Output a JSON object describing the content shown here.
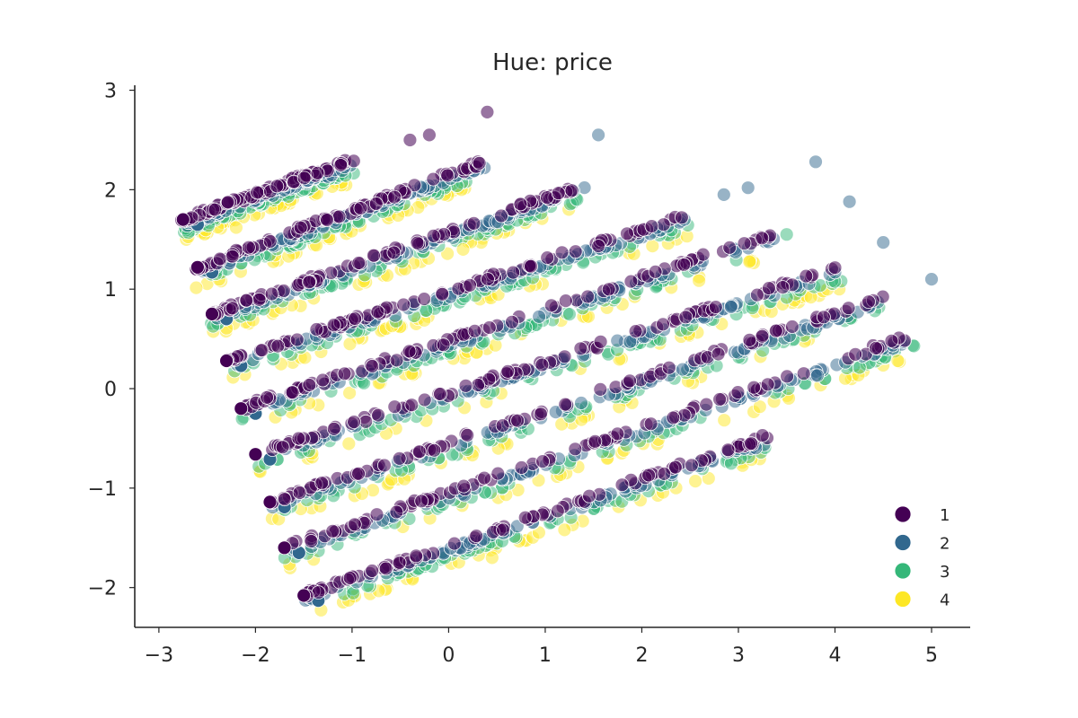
{
  "chart_data": {
    "type": "scatter",
    "title": "Hue: price",
    "xlabel": "",
    "ylabel": "",
    "xlim": [
      -3.25,
      5.4
    ],
    "ylim": [
      -2.4,
      3.05
    ],
    "xticks": [
      -3,
      -2,
      -1,
      0,
      1,
      2,
      3,
      4,
      5
    ],
    "yticks": [
      -2,
      -1,
      0,
      1,
      2,
      3
    ],
    "xtick_labels": [
      "−3",
      "−2",
      "−1",
      "0",
      "1",
      "2",
      "3",
      "4",
      "5"
    ],
    "ytick_labels": [
      "−2",
      "−1",
      "0",
      "1",
      "2",
      "3"
    ],
    "grid": false,
    "legend": {
      "placement": "bottom-right",
      "entries": [
        {
          "label": "1",
          "color": "#440154"
        },
        {
          "label": "2",
          "color": "#31688e"
        },
        {
          "label": "3",
          "color": "#35b779"
        },
        {
          "label": "4",
          "color": "#fde725"
        }
      ]
    },
    "bands": [
      {
        "start": [
          -2.75,
          1.7
        ],
        "end": [
          -1.0,
          2.3
        ]
      },
      {
        "start": [
          -2.6,
          1.22
        ],
        "end": [
          0.35,
          2.28
        ]
      },
      {
        "start": [
          -2.45,
          0.75
        ],
        "end": [
          1.4,
          2.05
        ]
      },
      {
        "start": [
          -2.3,
          0.28
        ],
        "end": [
          2.5,
          1.75
        ]
      },
      {
        "start": [
          -2.15,
          -0.2
        ],
        "end": [
          3.35,
          1.55
        ]
      },
      {
        "start": [
          -2.0,
          -0.66
        ],
        "end": [
          4.15,
          1.25
        ]
      },
      {
        "start": [
          -1.85,
          -1.14
        ],
        "end": [
          4.5,
          0.92
        ]
      },
      {
        "start": [
          -1.7,
          -1.6
        ],
        "end": [
          4.85,
          0.55
        ]
      },
      {
        "start": [
          -1.5,
          -2.08
        ],
        "end": [
          3.3,
          -0.48
        ]
      }
    ],
    "series": [
      {
        "name": "1",
        "color": "#440154",
        "opacity": 0.55,
        "offset_y": 0.0,
        "points_per_band": 90
      },
      {
        "name": "2",
        "color": "#31688e",
        "opacity": 0.5,
        "offset_y": -0.05,
        "points_per_band": 90
      },
      {
        "name": "3",
        "color": "#35b779",
        "opacity": 0.5,
        "offset_y": -0.12,
        "points_per_band": 60
      },
      {
        "name": "4",
        "color": "#fde725",
        "opacity": 0.5,
        "offset_y": -0.2,
        "points_per_band": 35
      }
    ],
    "outliers": [
      {
        "x": 0.4,
        "y": 2.78,
        "series": "1"
      },
      {
        "x": 1.55,
        "y": 2.55,
        "series": "2"
      },
      {
        "x": -0.4,
        "y": 2.5,
        "series": "1"
      },
      {
        "x": -0.2,
        "y": 2.55,
        "series": "1"
      },
      {
        "x": 3.8,
        "y": 2.28,
        "series": "2"
      },
      {
        "x": 4.15,
        "y": 1.88,
        "series": "2"
      },
      {
        "x": 3.1,
        "y": 2.02,
        "series": "2"
      },
      {
        "x": 2.85,
        "y": 1.95,
        "series": "2"
      },
      {
        "x": 4.5,
        "y": 1.47,
        "series": "2"
      },
      {
        "x": 3.5,
        "y": 1.55,
        "series": "3"
      },
      {
        "x": 5.0,
        "y": 1.1,
        "series": "2"
      },
      {
        "x": 4.65,
        "y": 0.28,
        "series": "4"
      },
      {
        "x": 3.25,
        "y": -0.47,
        "series": "1"
      },
      {
        "x": 1.2,
        "y": -1.42,
        "series": "4"
      },
      {
        "x": 0.45,
        "y": -1.7,
        "series": "4"
      },
      {
        "x": -2.2,
        "y": 1.62,
        "series": "4"
      },
      {
        "x": 0.15,
        "y": 1.4,
        "series": "4"
      }
    ]
  }
}
